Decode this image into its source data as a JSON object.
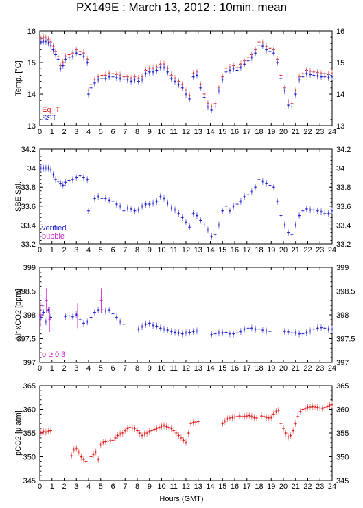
{
  "title": "PX149E : March 13, 2012 : 10min. mean",
  "xlabel": "Hours (GMT)",
  "colors": {
    "red": "#e02020",
    "blue": "#2020d0",
    "magenta": "#d020d0",
    "error_blue": "#8888ee",
    "error_red": "#f09090"
  },
  "chart_data": [
    {
      "id": "temp",
      "type": "scatter",
      "ylabel": "Temp. [°C]",
      "ylim": [
        13,
        16
      ],
      "yticks": [
        "13",
        "14",
        "15",
        "16"
      ],
      "xlim": [
        0,
        24
      ],
      "xticks": [
        "0",
        "1",
        "2",
        "3",
        "4",
        "5",
        "6",
        "7",
        "8",
        "9",
        "10",
        "11",
        "12",
        "13",
        "14",
        "15",
        "16",
        "17",
        "18",
        "19",
        "20",
        "21",
        "22",
        "23",
        "24"
      ],
      "legend": [
        "Eq_T",
        "SST"
      ],
      "series": [
        {
          "name": "Eq_T",
          "color": "#e02020",
          "x": [
            0.1,
            0.3,
            0.5,
            0.7,
            0.9,
            1.1,
            1.3,
            1.5,
            1.7,
            1.9,
            2.1,
            2.4,
            2.7,
            3.0,
            3.3,
            3.6,
            3.9,
            4.0,
            4.2,
            4.5,
            4.8,
            5.1,
            5.4,
            5.7,
            6.0,
            6.3,
            6.6,
            6.9,
            7.2,
            7.5,
            7.8,
            8.1,
            8.4,
            8.7,
            9.0,
            9.3,
            9.6,
            9.9,
            10.2,
            10.5,
            10.8,
            11.1,
            11.4,
            11.7,
            12.0,
            12.3,
            12.6,
            12.9,
            13.2,
            13.5,
            13.8,
            14.1,
            14.4,
            14.7,
            15.0,
            15.3,
            15.6,
            15.9,
            16.2,
            16.5,
            16.8,
            17.1,
            17.4,
            17.7,
            18.0,
            18.3,
            18.6,
            18.9,
            19.2,
            19.5,
            19.8,
            20.1,
            20.4,
            20.7,
            21.0,
            21.3,
            21.6,
            21.9,
            22.2,
            22.5,
            22.8,
            23.1,
            23.4,
            23.7,
            24.0
          ],
          "y": [
            15.75,
            15.78,
            15.77,
            15.72,
            15.65,
            15.5,
            15.35,
            15.2,
            14.9,
            15.0,
            15.2,
            15.25,
            15.3,
            15.4,
            15.35,
            15.3,
            15.1,
            14.1,
            14.3,
            14.45,
            14.55,
            14.6,
            14.6,
            14.65,
            14.65,
            14.62,
            14.6,
            14.55,
            14.55,
            14.5,
            14.55,
            14.5,
            14.55,
            14.75,
            14.8,
            14.8,
            14.85,
            14.95,
            14.95,
            14.8,
            14.6,
            14.5,
            14.4,
            14.3,
            14.1,
            13.95,
            14.65,
            14.7,
            14.3,
            14.0,
            13.7,
            13.6,
            13.7,
            14.2,
            14.55,
            14.8,
            14.85,
            14.9,
            14.85,
            14.95,
            15.05,
            15.15,
            15.25,
            15.4,
            15.65,
            15.62,
            15.5,
            15.45,
            15.4,
            15.1,
            14.6,
            14.2,
            13.75,
            13.7,
            14.1,
            14.55,
            14.65,
            14.75,
            14.72,
            14.7,
            14.68,
            14.65,
            14.65,
            14.62,
            14.65
          ]
        },
        {
          "name": "SST",
          "color": "#2020d0",
          "x": [
            0.1,
            0.3,
            0.5,
            0.7,
            0.9,
            1.1,
            1.3,
            1.5,
            1.7,
            1.9,
            2.1,
            2.4,
            2.7,
            3.0,
            3.3,
            3.6,
            3.9,
            4.0,
            4.2,
            4.5,
            4.8,
            5.1,
            5.4,
            5.7,
            6.0,
            6.3,
            6.6,
            6.9,
            7.2,
            7.5,
            7.8,
            8.1,
            8.4,
            8.7,
            9.0,
            9.3,
            9.6,
            9.9,
            10.2,
            10.5,
            10.8,
            11.1,
            11.4,
            11.7,
            12.0,
            12.3,
            12.6,
            12.9,
            13.2,
            13.5,
            13.8,
            14.1,
            14.4,
            14.7,
            15.0,
            15.3,
            15.6,
            15.9,
            16.2,
            16.5,
            16.8,
            17.1,
            17.4,
            17.7,
            18.0,
            18.3,
            18.6,
            18.9,
            19.2,
            19.5,
            19.8,
            20.1,
            20.4,
            20.7,
            21.0,
            21.3,
            21.6,
            21.9,
            22.2,
            22.5,
            22.8,
            23.1,
            23.4,
            23.7,
            24.0
          ],
          "y": [
            15.65,
            15.68,
            15.67,
            15.62,
            15.55,
            15.4,
            15.25,
            15.1,
            14.8,
            14.9,
            15.1,
            15.15,
            15.2,
            15.3,
            15.25,
            15.2,
            15.0,
            14.0,
            14.2,
            14.35,
            14.45,
            14.5,
            14.5,
            14.55,
            14.55,
            14.52,
            14.5,
            14.45,
            14.45,
            14.4,
            14.45,
            14.4,
            14.45,
            14.65,
            14.7,
            14.7,
            14.75,
            14.85,
            14.85,
            14.7,
            14.5,
            14.4,
            14.3,
            14.2,
            14.0,
            13.85,
            14.55,
            14.6,
            14.2,
            13.9,
            13.6,
            13.5,
            13.6,
            14.1,
            14.45,
            14.7,
            14.75,
            14.8,
            14.75,
            14.85,
            14.95,
            15.05,
            15.15,
            15.3,
            15.55,
            15.52,
            15.4,
            15.35,
            15.3,
            15.0,
            14.5,
            14.1,
            13.65,
            13.6,
            14.0,
            14.45,
            14.55,
            14.65,
            14.62,
            14.6,
            14.58,
            14.55,
            14.55,
            14.52,
            14.55
          ]
        }
      ]
    },
    {
      "id": "sal",
      "type": "scatter",
      "ylabel": "SBE Sal.",
      "ylim": [
        33.2,
        34.2
      ],
      "yticks": [
        "33.2",
        "33.4",
        "33.6",
        "33.8",
        "34",
        "34.2"
      ],
      "xlim": [
        0,
        24
      ],
      "xticks": [
        "0",
        "1",
        "2",
        "3",
        "4",
        "5",
        "6",
        "7",
        "8",
        "9",
        "10",
        "11",
        "12",
        "13",
        "14",
        "15",
        "16",
        "17",
        "18",
        "19",
        "20",
        "21",
        "22",
        "23",
        "24"
      ],
      "legend": [
        "verified",
        "bubble"
      ],
      "series": [
        {
          "name": "verified",
          "color": "#2020d0",
          "x": [
            0.1,
            0.3,
            0.5,
            0.7,
            0.9,
            1.1,
            1.3,
            1.5,
            1.7,
            1.9,
            2.1,
            2.4,
            2.7,
            3.0,
            3.3,
            3.6,
            3.9,
            4.0,
            4.2,
            4.5,
            4.8,
            5.1,
            5.4,
            5.7,
            6.0,
            6.3,
            6.6,
            6.9,
            7.2,
            7.5,
            7.8,
            8.1,
            8.4,
            8.7,
            9.0,
            9.3,
            9.6,
            9.9,
            10.2,
            10.5,
            10.8,
            11.1,
            11.4,
            11.7,
            12.0,
            12.3,
            12.6,
            12.9,
            13.2,
            13.5,
            13.8,
            14.1,
            14.4,
            14.7,
            15.0,
            15.3,
            15.6,
            15.9,
            16.2,
            16.5,
            16.8,
            17.1,
            17.4,
            17.7,
            18.0,
            18.3,
            18.6,
            18.9,
            19.2,
            19.5,
            19.8,
            20.1,
            20.4,
            20.7,
            21.0,
            21.3,
            21.6,
            21.9,
            22.2,
            22.5,
            22.8,
            23.1,
            23.4,
            23.7,
            24.0
          ],
          "y": [
            34.0,
            34.0,
            34.0,
            34.0,
            33.98,
            33.93,
            33.88,
            33.86,
            33.84,
            33.82,
            33.85,
            33.87,
            33.88,
            33.9,
            33.92,
            33.9,
            33.88,
            33.55,
            33.58,
            33.68,
            33.7,
            33.68,
            33.68,
            33.66,
            33.65,
            33.62,
            33.6,
            33.55,
            33.58,
            33.57,
            33.55,
            33.56,
            33.6,
            33.62,
            33.62,
            33.63,
            33.65,
            33.7,
            33.68,
            33.63,
            33.58,
            33.56,
            33.52,
            33.48,
            33.43,
            33.38,
            33.52,
            33.5,
            33.45,
            33.4,
            33.35,
            33.28,
            33.3,
            33.4,
            33.55,
            33.6,
            33.55,
            33.6,
            33.62,
            33.65,
            33.7,
            33.72,
            33.75,
            33.8,
            33.88,
            33.86,
            33.84,
            33.82,
            33.8,
            33.65,
            33.5,
            33.4,
            33.32,
            33.3,
            33.4,
            33.5,
            33.55,
            33.57,
            33.56,
            33.56,
            33.55,
            33.54,
            33.52,
            33.52,
            33.55
          ]
        }
      ]
    },
    {
      "id": "xco2",
      "type": "scatter",
      "ylabel": "Air xCO2 [ppm]",
      "ylim": [
        397,
        399
      ],
      "yticks": [
        "397",
        "397.5",
        "398",
        "398.5",
        "399"
      ],
      "xlim": [
        0,
        24
      ],
      "xticks": [
        "0",
        "1",
        "2",
        "3",
        "4",
        "5",
        "6",
        "7",
        "8",
        "9",
        "10",
        "11",
        "12",
        "13",
        "14",
        "15",
        "16",
        "17",
        "18",
        "19",
        "20",
        "21",
        "22",
        "23",
        "24"
      ],
      "annotation": "σ ≥ 0.3",
      "series": [
        {
          "name": "",
          "color": "#2020d0",
          "x": [
            0.1,
            0.3,
            0.5,
            0.7,
            0.9,
            2.1,
            2.4,
            2.7,
            3.0,
            3.3,
            3.6,
            3.9,
            4.2,
            4.5,
            4.8,
            5.1,
            5.4,
            5.7,
            6.0,
            6.3,
            6.6,
            6.9,
            8.1,
            8.4,
            8.7,
            9.0,
            9.3,
            9.6,
            9.9,
            10.2,
            10.5,
            10.8,
            11.1,
            11.4,
            11.7,
            12.0,
            12.3,
            12.6,
            12.9,
            14.1,
            14.4,
            14.7,
            15.0,
            15.3,
            15.6,
            15.9,
            16.2,
            16.5,
            16.8,
            17.1,
            17.4,
            17.7,
            18.0,
            18.3,
            18.6,
            18.9,
            20.1,
            20.4,
            20.7,
            21.0,
            21.3,
            21.6,
            21.9,
            22.2,
            22.5,
            22.8,
            23.1,
            23.4,
            23.7,
            24.0
          ],
          "y": [
            397.95,
            398.05,
            397.85,
            398.1,
            397.95,
            397.97,
            397.98,
            397.96,
            398.0,
            397.9,
            397.82,
            397.85,
            397.95,
            398.05,
            398.1,
            398.12,
            398.08,
            398.1,
            398.02,
            397.95,
            397.85,
            397.8,
            397.7,
            397.75,
            397.8,
            397.82,
            397.78,
            397.76,
            397.72,
            397.7,
            397.68,
            397.65,
            397.63,
            397.62,
            397.6,
            397.62,
            397.63,
            397.65,
            397.66,
            397.58,
            397.6,
            397.62,
            397.62,
            397.63,
            397.6,
            397.6,
            397.62,
            397.65,
            397.7,
            397.72,
            397.72,
            397.7,
            397.7,
            397.68,
            397.66,
            397.65,
            397.65,
            397.64,
            397.62,
            397.62,
            397.6,
            397.6,
            397.62,
            397.66,
            397.7,
            397.72,
            397.73,
            397.72,
            397.7,
            397.7
          ]
        },
        {
          "name": "",
          "color": "#d020d0",
          "x": [
            0.05,
            0.25,
            0.55,
            0.8,
            3.1,
            5.05
          ],
          "y": [
            398.0,
            398.2,
            398.3,
            397.9,
            397.98,
            398.3
          ]
        }
      ]
    },
    {
      "id": "pco2",
      "type": "scatter",
      "ylabel": "pCO2 [μ atm]",
      "ylim": [
        345,
        365
      ],
      "yticks": [
        "345",
        "350",
        "355",
        "360",
        "365"
      ],
      "xlim": [
        0,
        24
      ],
      "xticks": [
        "0",
        "1",
        "2",
        "3",
        "4",
        "5",
        "6",
        "7",
        "8",
        "9",
        "10",
        "11",
        "12",
        "13",
        "14",
        "15",
        "16",
        "17",
        "18",
        "19",
        "20",
        "21",
        "22",
        "23",
        "24"
      ],
      "series": [
        {
          "name": "",
          "color": "#e02020",
          "x": [
            0.1,
            0.3,
            0.5,
            0.7,
            0.9,
            2.6,
            2.8,
            3.0,
            3.2,
            3.4,
            3.6,
            3.8,
            4.2,
            4.4,
            4.6,
            4.8,
            5.0,
            5.2,
            5.4,
            5.6,
            5.8,
            6.0,
            6.2,
            6.4,
            6.6,
            6.8,
            7.0,
            7.2,
            7.4,
            7.6,
            7.8,
            8.0,
            8.2,
            8.4,
            8.6,
            8.8,
            9.0,
            9.2,
            9.4,
            9.6,
            9.8,
            10.0,
            10.2,
            10.4,
            10.6,
            10.8,
            11.0,
            11.2,
            11.4,
            11.6,
            11.8,
            12.0,
            12.2,
            12.4,
            12.6,
            12.8,
            13.0,
            15.0,
            15.2,
            15.4,
            15.6,
            15.8,
            16.0,
            16.2,
            16.4,
            16.6,
            16.8,
            17.0,
            17.2,
            17.4,
            17.6,
            17.8,
            18.0,
            18.2,
            18.4,
            18.6,
            18.8,
            19.0,
            19.2,
            19.4,
            19.6,
            19.8,
            20.0,
            20.2,
            20.4,
            20.6,
            20.8,
            21.0,
            21.2,
            21.4,
            21.6,
            21.8,
            22.0,
            22.2,
            22.4,
            22.6,
            22.8,
            23.0,
            23.2,
            23.4,
            23.6,
            23.8,
            24.0
          ],
          "y": [
            355.1,
            355.3,
            355.2,
            355.4,
            355.5,
            350.2,
            351.5,
            351.8,
            351.0,
            350.0,
            349.5,
            349.0,
            350.0,
            350.5,
            351.0,
            349.5,
            352.5,
            353.0,
            353.2,
            353.3,
            353.4,
            353.5,
            354.0,
            354.5,
            354.8,
            355.0,
            355.5,
            356.0,
            356.2,
            356.1,
            356.0,
            355.5,
            355.0,
            354.5,
            354.8,
            355.0,
            355.3,
            355.5,
            355.8,
            356.0,
            356.2,
            356.5,
            356.6,
            356.4,
            356.2,
            356.0,
            355.5,
            355.0,
            354.5,
            354.0,
            353.5,
            353.0,
            355.0,
            357.0,
            357.2,
            357.3,
            357.4,
            357.0,
            357.5,
            358.0,
            358.2,
            358.3,
            358.4,
            358.5,
            358.6,
            358.5,
            358.5,
            358.6,
            358.7,
            358.5,
            358.3,
            358.2,
            358.4,
            358.6,
            358.5,
            358.3,
            358.2,
            358.3,
            359.0,
            359.5,
            359.8,
            357.0,
            356.0,
            355.0,
            354.2,
            354.5,
            355.5,
            357.0,
            358.5,
            359.5,
            360.0,
            360.2,
            360.4,
            360.5,
            360.6,
            360.5,
            360.4,
            360.3,
            360.2,
            360.4,
            360.6,
            360.8,
            361.0
          ]
        }
      ]
    }
  ]
}
